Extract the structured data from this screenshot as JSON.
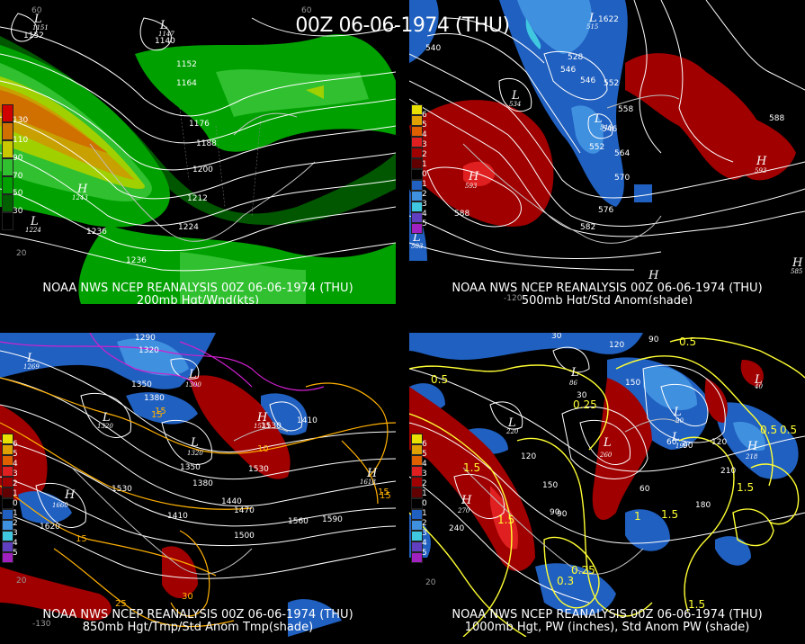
{
  "title": "00Z 06-06-1974 (THU)",
  "panels": [
    {
      "id": "p1",
      "caption_line1": "NOAA NWS NCEP REANALYSIS 00Z 06-06-1974 (THU)",
      "caption_line2": "200mb Hgt/Wnd(kts)",
      "colorbar": [
        "130",
        "110",
        "90",
        "70",
        "50",
        "30"
      ],
      "contour_labels": [
        "1152",
        "1140",
        "1152",
        "1164",
        "1176",
        "1188",
        "1200",
        "1212",
        "1224",
        "1236",
        "1236"
      ],
      "centers": [
        {
          "type": "L",
          "value": "1151"
        },
        {
          "type": "L",
          "value": "1147"
        },
        {
          "type": "H",
          "value": "1243"
        },
        {
          "type": "L",
          "value": "1224"
        }
      ],
      "coords": [
        "60",
        "60",
        "20"
      ]
    },
    {
      "id": "p2",
      "caption_line1": "NOAA NWS NCEP REANALYSIS 00Z 06-06-1974 (THU)",
      "caption_line2": "500mb Hgt/Std Anom(shade)",
      "colorbar": [
        "6",
        "5",
        "4",
        "3",
        "2",
        "1",
        "0",
        "1",
        "2",
        "3",
        "4",
        "5"
      ],
      "contour_labels": [
        "540",
        "528",
        "546",
        "546",
        "552",
        "558",
        "546",
        "552",
        "564",
        "570",
        "576",
        "582",
        "588",
        "588"
      ],
      "centers": [
        {
          "type": "L",
          "value": "515"
        },
        {
          "type": "L",
          "value": "534"
        },
        {
          "type": "L",
          "value": "546"
        },
        {
          "type": "H",
          "value": "593"
        },
        {
          "type": "H",
          "value": "593"
        },
        {
          "type": "L",
          "value": "583"
        },
        {
          "type": "H",
          "value": "585"
        },
        {
          "type": "H",
          "value": ""
        }
      ],
      "extra_labels": [
        "1622"
      ],
      "coords": [
        "-120"
      ]
    },
    {
      "id": "p3",
      "caption_line1": "NOAA NWS NCEP REANALYSIS 00Z 06-06-1974 (THU)",
      "caption_line2": "850mb Hgt/Tmp/Std Anom Tmp(shade)",
      "colorbar": [
        "6",
        "5",
        "4",
        "3",
        "2",
        "1",
        "0",
        "1",
        "2",
        "3",
        "4",
        "5"
      ],
      "contour_labels": [
        "1290",
        "1320",
        "1350",
        "1380",
        "1350",
        "1380",
        "1530",
        "1410",
        "1440",
        "1470",
        "1500",
        "1530",
        "1560",
        "1590",
        "1620",
        "1530",
        "1410"
      ],
      "temp_labels": [
        "15",
        "10",
        "15",
        "15",
        "30",
        "25",
        "15",
        "15"
      ],
      "centers": [
        {
          "type": "L",
          "value": "1269"
        },
        {
          "type": "L",
          "value": "1300"
        },
        {
          "type": "L",
          "value": "1320"
        },
        {
          "type": "L",
          "value": "1320"
        },
        {
          "type": "H",
          "value": "1533"
        },
        {
          "type": "H",
          "value": "1660"
        },
        {
          "type": "H",
          "value": "1618"
        }
      ],
      "coords": [
        "20",
        "-130"
      ]
    },
    {
      "id": "p4",
      "caption_line1": "NOAA NWS NCEP REANALYSIS 00Z 06-06-1974 (THU)",
      "caption_line2": "1000mb Hgt, PW (inches), Std Anom PW (shade)",
      "colorbar": [
        "6",
        "5",
        "4",
        "3",
        "2",
        "1",
        "0",
        "1",
        "2",
        "3",
        "4",
        "5"
      ],
      "contour_labels": [
        "30",
        "120",
        "90",
        "150",
        "120",
        "90",
        "60",
        "150",
        "180",
        "210",
        "240",
        "90",
        "30",
        "60",
        "90",
        "120"
      ],
      "pw_labels": [
        "0.5",
        "0.5",
        "0.25",
        "0.5",
        "1.5",
        "1.5",
        "1.5",
        "1.5",
        "0.25",
        "0.3",
        "1.5",
        "0.5",
        "1"
      ],
      "centers": [
        {
          "type": "L",
          "value": "220"
        },
        {
          "type": "L",
          "value": "260"
        },
        {
          "type": "L",
          "value": "86"
        },
        {
          "type": "L",
          "value": "90"
        },
        {
          "type": "H",
          "value": "270"
        },
        {
          "type": "H",
          "value": "218"
        },
        {
          "type": "L",
          "value": "40"
        },
        {
          "type": "L",
          "value": "190"
        }
      ],
      "coords": [
        "20"
      ]
    }
  ]
}
